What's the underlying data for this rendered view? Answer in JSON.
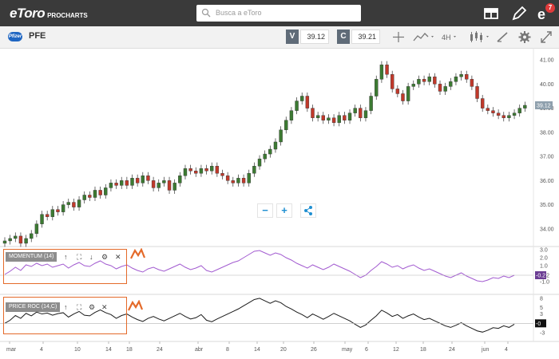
{
  "header": {
    "logo": "eToro",
    "logo_suffix": "PROCHARTS",
    "search_placeholder": "Busca a eToro",
    "notification_count": "7"
  },
  "instrument": {
    "symbol": "PFE",
    "sell_label": "V",
    "sell_price": "39.12",
    "buy_label": "C",
    "buy_price": "39.21",
    "timeframe": "4H"
  },
  "chart_data": [
    {
      "type": "candlestick",
      "title": "PFE",
      "y_ticks": [
        "41.00",
        "40.00",
        "39.00",
        "38.00",
        "37.00",
        "36.00",
        "35.00",
        "34.00"
      ],
      "ylim": [
        33.3,
        41.5
      ],
      "last_price_label": "39.12",
      "x_ticks": [
        "mar",
        "4",
        "10",
        "14",
        "18",
        "24",
        "abr",
        "8",
        "14",
        "20",
        "26",
        "may",
        "6",
        "12",
        "18",
        "24",
        "jun",
        "4"
      ],
      "close_series": [
        33.5,
        33.6,
        33.7,
        33.4,
        33.6,
        33.8,
        34.2,
        34.6,
        34.5,
        34.8,
        34.7,
        35.0,
        35.1,
        34.9,
        35.2,
        35.4,
        35.3,
        35.6,
        35.4,
        35.7,
        35.9,
        35.8,
        36.0,
        35.8,
        36.1,
        35.9,
        36.2,
        36.0,
        35.7,
        35.9,
        36.0,
        35.6,
        35.9,
        36.2,
        36.5,
        36.4,
        36.3,
        36.5,
        36.4,
        36.6,
        36.3,
        36.2,
        36.0,
        35.9,
        36.1,
        35.9,
        36.3,
        36.6,
        36.9,
        37.1,
        37.3,
        37.6,
        38.1,
        38.5,
        38.9,
        39.3,
        39.5,
        39.0,
        38.6,
        38.7,
        38.5,
        38.6,
        38.4,
        38.7,
        38.5,
        38.8,
        39.0,
        38.6,
        38.9,
        39.5,
        40.2,
        40.8,
        40.4,
        39.8,
        39.6,
        39.3,
        39.9,
        40.0,
        40.2,
        40.1,
        40.3,
        40.0,
        39.7,
        39.9,
        40.1,
        40.3,
        40.4,
        40.2,
        39.9,
        39.4,
        39.0,
        38.9,
        38.8,
        38.7,
        38.6,
        38.7,
        38.8,
        39.0,
        39.12
      ]
    },
    {
      "type": "line",
      "title": "MOMENTUM (14)",
      "y_ticks": [
        "3.0",
        "2.0",
        "1.0",
        "-0.2",
        "-1.0"
      ],
      "ylim": [
        -1.3,
        3.3
      ],
      "last_value_label": "-0.2",
      "values": [
        -0.1,
        0.3,
        0.8,
        0.4,
        1.1,
        0.9,
        1.3,
        1.0,
        1.2,
        0.8,
        1.0,
        1.2,
        0.7,
        1.1,
        1.4,
        1.0,
        0.9,
        1.3,
        1.6,
        1.2,
        1.0,
        0.6,
        0.9,
        1.1,
        0.7,
        0.4,
        0.2,
        0.6,
        0.8,
        0.5,
        0.3,
        0.6,
        0.9,
        1.2,
        0.8,
        0.5,
        0.7,
        1.0,
        0.4,
        0.2,
        0.5,
        0.8,
        1.1,
        1.4,
        1.6,
        2.0,
        2.4,
        2.8,
        2.9,
        2.6,
        2.3,
        2.6,
        2.4,
        2.0,
        1.7,
        1.3,
        1.0,
        0.7,
        1.1,
        0.8,
        0.5,
        0.8,
        1.2,
        0.9,
        0.6,
        0.3,
        -0.1,
        -0.5,
        -0.2,
        0.4,
        0.9,
        1.5,
        1.2,
        0.8,
        1.0,
        0.6,
        0.9,
        1.1,
        0.7,
        0.4,
        0.6,
        0.3,
        0.0,
        -0.3,
        -0.5,
        -0.2,
        0.1,
        -0.3,
        -0.6,
        -0.9,
        -1.0,
        -0.8,
        -0.5,
        -0.6,
        -0.3,
        -0.5,
        -0.2
      ]
    },
    {
      "type": "line",
      "title": "PRICE ROC (14,C)",
      "y_ticks": [
        "8",
        "5",
        "3",
        "-0",
        "-3"
      ],
      "ylim": [
        -4,
        9
      ],
      "last_value_label": "-0",
      "values": [
        0.0,
        1.0,
        2.5,
        1.6,
        3.2,
        2.4,
        3.6,
        3.0,
        3.3,
        2.6,
        3.1,
        3.4,
        2.0,
        3.0,
        3.8,
        2.6,
        2.4,
        3.5,
        4.3,
        3.4,
        2.8,
        1.6,
        2.5,
        3.0,
        2.0,
        1.2,
        0.6,
        1.6,
        2.2,
        1.4,
        0.8,
        1.6,
        2.4,
        3.2,
        2.2,
        1.4,
        1.8,
        2.8,
        1.0,
        0.5,
        1.4,
        2.2,
        3.0,
        3.8,
        4.6,
        5.6,
        6.6,
        7.6,
        8.0,
        7.2,
        6.4,
        7.2,
        6.6,
        5.4,
        4.6,
        3.6,
        2.8,
        1.8,
        3.0,
        2.2,
        1.3,
        2.2,
        3.2,
        2.4,
        1.6,
        0.8,
        -0.3,
        -1.3,
        -0.5,
        1.0,
        2.4,
        4.2,
        3.3,
        2.2,
        2.8,
        1.6,
        2.4,
        3.0,
        2.0,
        1.2,
        1.6,
        0.8,
        0.0,
        -0.8,
        -1.3,
        -0.6,
        0.2,
        -0.8,
        -1.6,
        -2.4,
        -2.8,
        -2.2,
        -1.4,
        -1.6,
        -0.8,
        -1.3,
        -0.3
      ]
    }
  ],
  "indicators": [
    {
      "label": "MOMENTUM (14)"
    },
    {
      "label": "PRICE ROC (14,C)"
    }
  ],
  "colors": {
    "up": "#3c7a32",
    "down": "#c0392b",
    "momentum": "#a25bd0",
    "roc": "#1a1a1a",
    "accent": "#e46a2a",
    "blue": "#1f8fd1"
  },
  "zoom_controls": {
    "minus": "−",
    "plus": "+",
    "share": "share-icon"
  }
}
